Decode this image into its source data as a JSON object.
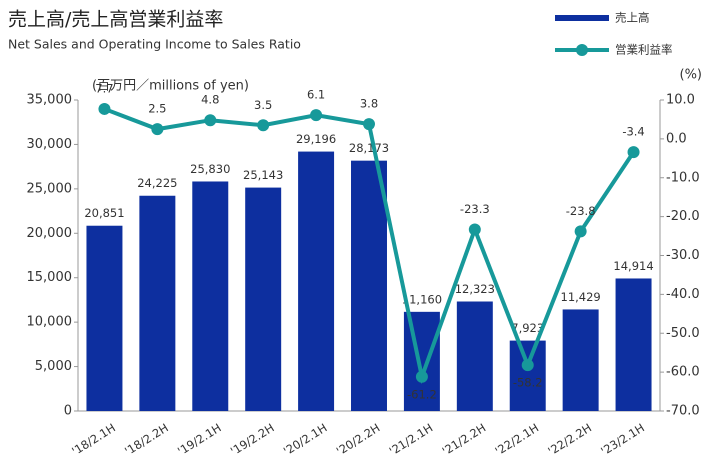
{
  "chart_data": {
    "type": "bar",
    "title": "売上高/売上高営業利益率",
    "subtitle": "Net Sales and Operating Income to Sales Ratio",
    "ylabel": "(百万円／millions of yen)",
    "y2label": "(%)",
    "categories": [
      "'18/2.1H",
      "'18/2.2H",
      "'19/2.1H",
      "'19/2.2H",
      "'20/2.1H",
      "'20/2.2H",
      "'21/2.1H",
      "'21/2.2H",
      "'22/2.1H",
      "'22/2.2H",
      "'23/2.1H"
    ],
    "series": [
      {
        "name": "売上高",
        "type": "bar",
        "color": "#0d2f9f",
        "values": [
          20851,
          24225,
          25830,
          25143,
          29196,
          28173,
          11160,
          12323,
          7923,
          11429,
          14914
        ],
        "value_labels": [
          "20,851",
          "24,225",
          "25,830",
          "25,143",
          "29,196",
          "28,173",
          "11,160",
          "12,323",
          "7,923",
          "11,429",
          "14,914"
        ]
      },
      {
        "name": "営業利益率",
        "type": "line",
        "axis": "y2",
        "color": "#17999a",
        "values": [
          7.7,
          2.5,
          4.8,
          3.5,
          6.1,
          3.8,
          -61.2,
          -23.3,
          -58.2,
          -23.8,
          -3.4
        ]
      }
    ],
    "ylim": [
      0,
      35000
    ],
    "yticks": [
      0,
      {
        "value": 5000,
        "label": "5,000"
      },
      {
        "value": 10000,
        "label": "10,000"
      },
      {
        "value": 15000,
        "label": "15,000"
      },
      {
        "value": 20000,
        "label": "20,000"
      },
      {
        "value": 25000,
        "label": "25,000"
      },
      {
        "value": 30000,
        "label": "30,000"
      },
      {
        "value": 35000,
        "label": "35,000"
      }
    ],
    "y2lim": [
      -70,
      10
    ],
    "y2ticks": [
      {
        "value": -70,
        "label": "-70.0"
      },
      {
        "value": -60,
        "label": "-60.0"
      },
      {
        "value": -50,
        "label": "-50.0"
      },
      {
        "value": -40,
        "label": "-40.0"
      },
      {
        "value": -30,
        "label": "-30.0"
      },
      {
        "value": -20,
        "label": "-20.0"
      },
      {
        "value": -10,
        "label": "-10.0"
      },
      {
        "value": 0,
        "label": "0.0"
      },
      {
        "value": 10,
        "label": "10.0"
      }
    ],
    "grid": false,
    "legend": "top-right"
  }
}
